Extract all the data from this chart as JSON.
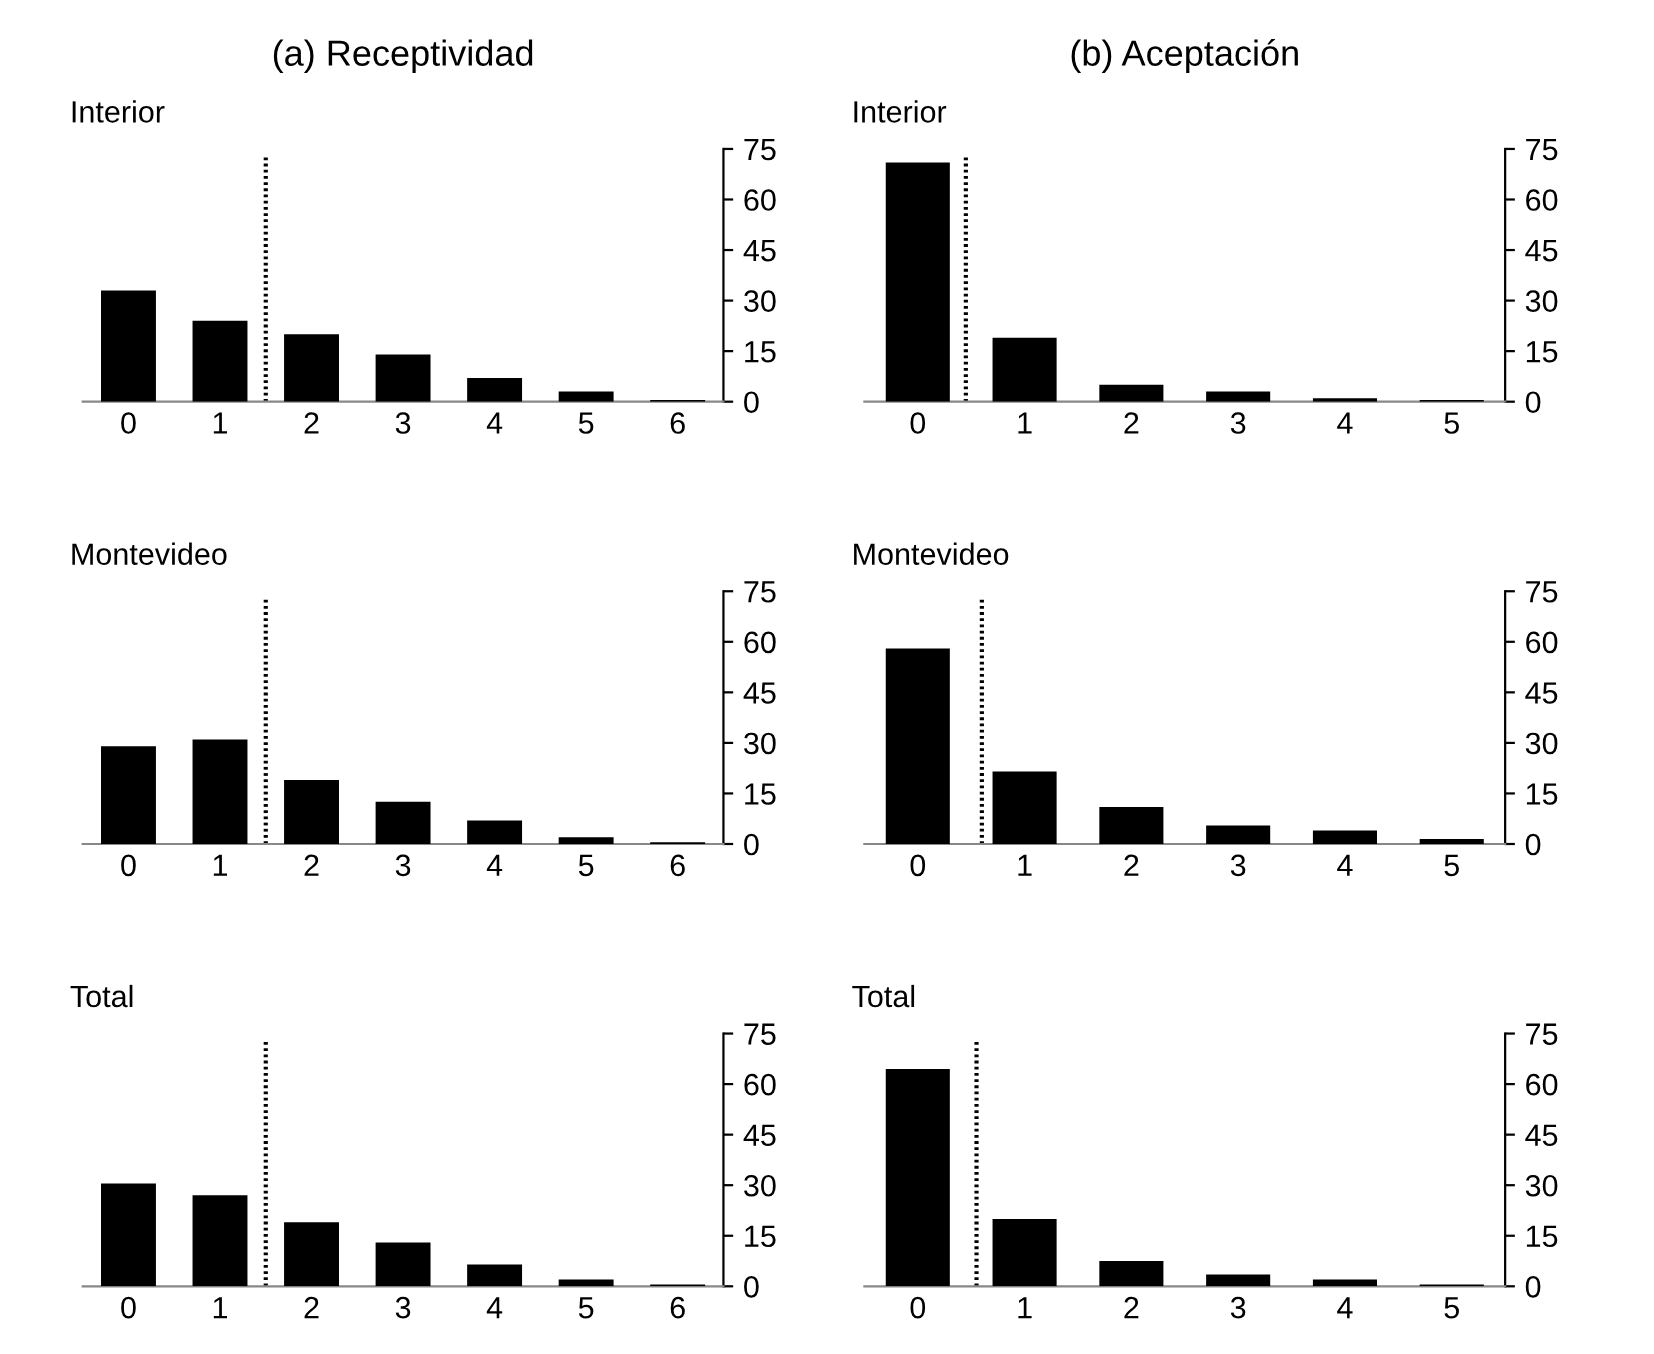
{
  "chart_data": [
    {
      "type": "bar",
      "title": "(a) Receptividad",
      "subtitle": "Interior",
      "categories": [
        "0",
        "1",
        "2",
        "3",
        "4",
        "5",
        "6"
      ],
      "values": [
        33,
        24,
        20,
        14,
        7,
        3,
        0.5
      ],
      "color": "#000000",
      "ylim": [
        0,
        75
      ],
      "yticks": [
        0,
        15,
        30,
        45,
        60,
        75
      ],
      "grid": false
    },
    {
      "type": "bar",
      "title": "(b) Aceptación",
      "subtitle": "Interior",
      "categories": [
        "0",
        "1",
        "2",
        "3",
        "4",
        "5"
      ],
      "values": [
        71,
        19,
        5,
        3,
        1,
        0.5
      ],
      "color": "#000000",
      "ylim": [
        0,
        75
      ],
      "yticks": [
        0,
        15,
        30,
        45,
        60,
        75
      ],
      "grid": false
    },
    {
      "type": "bar",
      "subtitle": "Montevideo",
      "categories": [
        "0",
        "1",
        "2",
        "3",
        "4",
        "5",
        "6"
      ],
      "values": [
        29,
        31,
        19,
        12.5,
        7,
        2,
        0.5
      ],
      "color": "#000000",
      "ylim": [
        0,
        75
      ],
      "yticks": [
        0,
        15,
        30,
        45,
        60,
        75
      ],
      "grid": false
    },
    {
      "type": "bar",
      "subtitle": "Montevideo",
      "categories": [
        "0",
        "1",
        "2",
        "3",
        "4",
        "5"
      ],
      "values": [
        58,
        21.5,
        11,
        5.5,
        4,
        1.5
      ],
      "color": "#000000",
      "ylim": [
        0,
        75
      ],
      "yticks": [
        0,
        15,
        30,
        45,
        60,
        75
      ],
      "grid": false
    },
    {
      "type": "bar",
      "subtitle": "Total",
      "categories": [
        "0",
        "1",
        "2",
        "3",
        "4",
        "5",
        "6"
      ],
      "values": [
        30.5,
        27,
        19,
        13,
        6.5,
        2,
        0.5
      ],
      "color": "#000000",
      "ylim": [
        0,
        75
      ],
      "yticks": [
        0,
        15,
        30,
        45,
        60,
        75
      ],
      "grid": false
    },
    {
      "type": "bar",
      "subtitle": "Total",
      "categories": [
        "0",
        "1",
        "2",
        "3",
        "4",
        "5"
      ],
      "values": [
        64.5,
        20,
        7.5,
        3.5,
        2,
        0.5
      ],
      "color": "#000000",
      "ylim": [
        0,
        75
      ],
      "yticks": [
        0,
        15,
        30,
        45,
        60,
        75
      ],
      "grid": false
    }
  ]
}
